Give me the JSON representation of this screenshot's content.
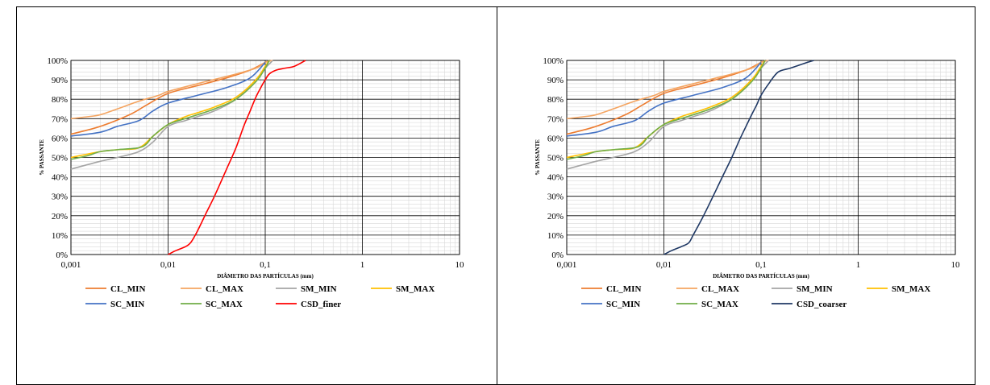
{
  "chart_data": [
    {
      "type": "line",
      "xscale": "log",
      "xlim": [
        0.001,
        10
      ],
      "ylim": [
        0,
        100
      ],
      "xlabel": "DIÂMETRO DAS PARTÍCULAS (mm)",
      "ylabel": "% PASSANTE",
      "xticks": [
        "0,001",
        "0,01",
        "0,1",
        "1",
        "10"
      ],
      "yticks": [
        "0%",
        "10%",
        "20%",
        "30%",
        "40%",
        "50%",
        "60%",
        "70%",
        "80%",
        "90%",
        "100%"
      ],
      "grid": true,
      "legend_position": "bottom",
      "series": [
        {
          "name": "CL_MIN",
          "color": "#ED7D31",
          "x": [
            0.001,
            0.002,
            0.004,
            0.006,
            0.01,
            0.02,
            0.04,
            0.07,
            0.1
          ],
          "y": [
            62,
            66,
            72,
            77,
            83,
            87,
            91,
            95,
            99
          ]
        },
        {
          "name": "CL_MAX",
          "color": "#F4A460",
          "x": [
            0.001,
            0.0015,
            0.002,
            0.003,
            0.005,
            0.008,
            0.01,
            0.02,
            0.05,
            0.08,
            0.1,
            0.12
          ],
          "y": [
            70,
            71,
            72,
            75,
            79,
            82,
            84,
            88,
            93,
            96,
            99,
            100
          ]
        },
        {
          "name": "SM_MIN",
          "color": "#A5A5A5",
          "x": [
            0.001,
            0.002,
            0.003,
            0.005,
            0.007,
            0.01,
            0.015,
            0.02,
            0.03,
            0.05,
            0.08,
            0.1,
            0.12
          ],
          "y": [
            44,
            48,
            50,
            53,
            58,
            66,
            69,
            71,
            74,
            80,
            90,
            96,
            100
          ]
        },
        {
          "name": "SM_MAX",
          "color": "#FFC000",
          "x": [
            0.001,
            0.002,
            0.003,
            0.005,
            0.007,
            0.01,
            0.015,
            0.02,
            0.03,
            0.05,
            0.08,
            0.1,
            0.11
          ],
          "y": [
            50,
            53,
            54,
            55,
            61,
            67,
            71,
            73,
            76,
            81,
            90,
            97,
            100
          ]
        },
        {
          "name": "SC_MIN",
          "color": "#4472C4",
          "x": [
            0.001,
            0.002,
            0.003,
            0.005,
            0.007,
            0.01,
            0.02,
            0.04,
            0.07,
            0.1
          ],
          "y": [
            61,
            63,
            66,
            69,
            74,
            78,
            82,
            86,
            91,
            99
          ]
        },
        {
          "name": "SC_MAX",
          "color": "#70AD47",
          "x": [
            0.001,
            0.0015,
            0.002,
            0.003,
            0.005,
            0.006,
            0.007,
            0.01,
            0.015,
            0.02,
            0.03,
            0.05,
            0.08,
            0.1,
            0.11
          ],
          "y": [
            49,
            51,
            53,
            54,
            55,
            57,
            61,
            67,
            70,
            72,
            75,
            80,
            89,
            96,
            100
          ]
        },
        {
          "name": "CSD_finer",
          "color": "#FF0000",
          "x": [
            0.01,
            0.012,
            0.015,
            0.017,
            0.02,
            0.025,
            0.03,
            0.04,
            0.05,
            0.06,
            0.07,
            0.08,
            0.09,
            0.1,
            0.11,
            0.13,
            0.16,
            0.2,
            0.26
          ],
          "y": [
            0,
            2,
            4,
            6,
            12,
            22,
            30,
            44,
            55,
            66,
            74,
            81,
            86,
            90,
            93,
            95,
            96,
            97,
            100
          ]
        }
      ]
    },
    {
      "type": "line",
      "xscale": "log",
      "xlim": [
        0.001,
        10
      ],
      "ylim": [
        0,
        100
      ],
      "xlabel": "DIÂMETRO DAS PARTÍCULAS (mm)",
      "ylabel": "% PASSANTE",
      "xticks": [
        "0,001",
        "0,01",
        "0,1",
        "1",
        "10"
      ],
      "yticks": [
        "0%",
        "10%",
        "20%",
        "30%",
        "40%",
        "50%",
        "60%",
        "70%",
        "80%",
        "90%",
        "100%"
      ],
      "grid": true,
      "legend_position": "bottom",
      "series": [
        {
          "name": "CL_MIN",
          "color": "#ED7D31",
          "x": [
            0.001,
            0.002,
            0.004,
            0.006,
            0.01,
            0.02,
            0.04,
            0.07,
            0.1
          ],
          "y": [
            62,
            66,
            72,
            77,
            83,
            87,
            91,
            95,
            99
          ]
        },
        {
          "name": "CL_MAX",
          "color": "#F4A460",
          "x": [
            0.001,
            0.0015,
            0.002,
            0.003,
            0.005,
            0.008,
            0.01,
            0.02,
            0.05,
            0.08,
            0.1,
            0.12
          ],
          "y": [
            70,
            71,
            72,
            75,
            79,
            82,
            84,
            88,
            93,
            96,
            99,
            100
          ]
        },
        {
          "name": "SM_MIN",
          "color": "#A5A5A5",
          "x": [
            0.001,
            0.002,
            0.003,
            0.005,
            0.007,
            0.01,
            0.015,
            0.02,
            0.03,
            0.05,
            0.08,
            0.1,
            0.12
          ],
          "y": [
            44,
            48,
            50,
            53,
            58,
            66,
            69,
            71,
            74,
            80,
            90,
            96,
            100
          ]
        },
        {
          "name": "SM_MAX",
          "color": "#FFC000",
          "x": [
            0.001,
            0.002,
            0.003,
            0.005,
            0.007,
            0.01,
            0.015,
            0.02,
            0.03,
            0.05,
            0.08,
            0.1,
            0.11
          ],
          "y": [
            50,
            53,
            54,
            55,
            61,
            67,
            71,
            73,
            76,
            81,
            90,
            97,
            100
          ]
        },
        {
          "name": "SC_MIN",
          "color": "#4472C4",
          "x": [
            0.001,
            0.002,
            0.003,
            0.005,
            0.007,
            0.01,
            0.02,
            0.04,
            0.07,
            0.1
          ],
          "y": [
            61,
            63,
            66,
            69,
            74,
            78,
            82,
            86,
            91,
            99
          ]
        },
        {
          "name": "SC_MAX",
          "color": "#70AD47",
          "x": [
            0.001,
            0.0015,
            0.002,
            0.003,
            0.005,
            0.006,
            0.007,
            0.01,
            0.015,
            0.02,
            0.03,
            0.05,
            0.08,
            0.1,
            0.11
          ],
          "y": [
            49,
            51,
            53,
            54,
            55,
            57,
            61,
            67,
            70,
            72,
            75,
            80,
            89,
            96,
            100
          ]
        },
        {
          "name": "CSD_coarser",
          "color": "#1F3864",
          "x": [
            0.01,
            0.012,
            0.015,
            0.018,
            0.02,
            0.025,
            0.03,
            0.04,
            0.05,
            0.06,
            0.07,
            0.08,
            0.09,
            0.1,
            0.12,
            0.15,
            0.2,
            0.3,
            0.35
          ],
          "y": [
            0,
            2,
            4,
            6,
            10,
            19,
            27,
            40,
            50,
            59,
            66,
            72,
            77,
            82,
            88,
            94,
            96,
            99,
            100
          ]
        }
      ]
    }
  ]
}
